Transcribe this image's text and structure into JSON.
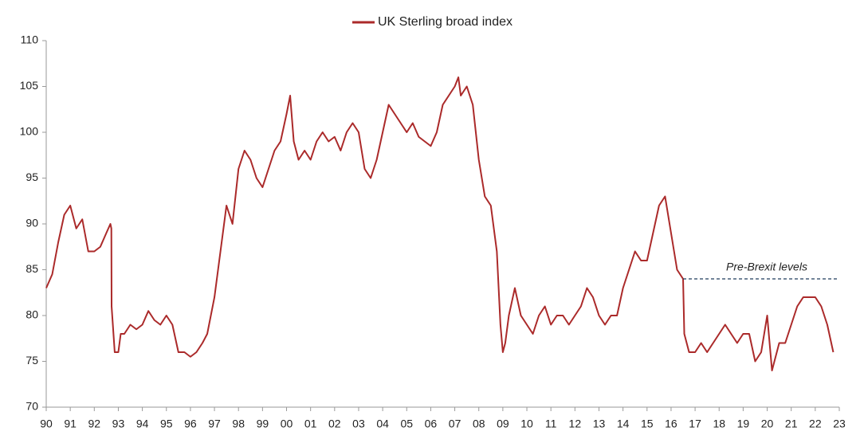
{
  "chart_data": {
    "type": "line",
    "series": [
      {
        "name": "UK Sterling broad index",
        "color": "#ab2a2a",
        "x": [
          1990.0,
          1990.25,
          1990.5,
          1990.75,
          1991.0,
          1991.25,
          1991.5,
          1991.75,
          1992.0,
          1992.25,
          1992.5,
          1992.67,
          1992.71,
          1992.72,
          1992.85,
          1993.0,
          1993.1,
          1993.25,
          1993.5,
          1993.75,
          1994.0,
          1994.25,
          1994.5,
          1994.75,
          1995.0,
          1995.25,
          1995.5,
          1995.75,
          1996.0,
          1996.25,
          1996.5,
          1996.7,
          1997.0,
          1997.25,
          1997.5,
          1997.75,
          1998.0,
          1998.25,
          1998.5,
          1998.75,
          1999.0,
          1999.25,
          1999.5,
          1999.75,
          2000.0,
          2000.15,
          2000.3,
          2000.5,
          2000.75,
          2001.0,
          2001.25,
          2001.5,
          2001.75,
          2002.0,
          2002.25,
          2002.5,
          2002.75,
          2003.0,
          2003.25,
          2003.5,
          2003.75,
          2004.0,
          2004.25,
          2004.5,
          2004.75,
          2005.0,
          2005.25,
          2005.5,
          2005.75,
          2006.0,
          2006.25,
          2006.5,
          2006.75,
          2007.0,
          2007.15,
          2007.25,
          2007.5,
          2007.75,
          2008.0,
          2008.25,
          2008.5,
          2008.75,
          2008.9,
          2009.0,
          2009.1,
          2009.25,
          2009.5,
          2009.75,
          2010.0,
          2010.25,
          2010.5,
          2010.75,
          2011.0,
          2011.25,
          2011.5,
          2011.75,
          2012.0,
          2012.25,
          2012.5,
          2012.75,
          2013.0,
          2013.25,
          2013.5,
          2013.75,
          2014.0,
          2014.25,
          2014.5,
          2014.75,
          2015.0,
          2015.25,
          2015.5,
          2015.75,
          2016.0,
          2016.25,
          2016.5,
          2016.55,
          2016.75,
          2017.0,
          2017.25,
          2017.5,
          2017.75,
          2018.0,
          2018.25,
          2018.5,
          2018.75,
          2019.0,
          2019.25,
          2019.5,
          2019.75,
          2020.0,
          2020.2,
          2020.5,
          2020.75,
          2021.0,
          2021.25,
          2021.5,
          2021.75,
          2022.0,
          2022.25,
          2022.5,
          2022.75
        ],
        "values": [
          83,
          84.5,
          88,
          91,
          92,
          89.5,
          90.5,
          87,
          87,
          87.5,
          89,
          90,
          89.5,
          81,
          76,
          76,
          78,
          78,
          79,
          78.5,
          79,
          80.5,
          79.5,
          79,
          80,
          79,
          76,
          76,
          75.5,
          76,
          77,
          78,
          82,
          87,
          92,
          90,
          96,
          98,
          97,
          95,
          94,
          96,
          98,
          99,
          102,
          104,
          99,
          97,
          98,
          97,
          99,
          100,
          99,
          99.5,
          98,
          100,
          101,
          100,
          96,
          95,
          97,
          100,
          103,
          102,
          101,
          100,
          101,
          99.5,
          99,
          98.5,
          100,
          103,
          104,
          105,
          106,
          104,
          105,
          103,
          97,
          93,
          92,
          87,
          79,
          76,
          77,
          80,
          83,
          80,
          79,
          78,
          80,
          81,
          79,
          80,
          80,
          79,
          80,
          81,
          83,
          82,
          80,
          79,
          80,
          80,
          83,
          85,
          87,
          86,
          86,
          89,
          92,
          93,
          89,
          85,
          84,
          78,
          76,
          76,
          77,
          76,
          77,
          78,
          79,
          78,
          77,
          78,
          78,
          75,
          76,
          80,
          74,
          77,
          77,
          79,
          81,
          82,
          82,
          82,
          81,
          79,
          76
        ]
      }
    ],
    "xlim": [
      1990,
      2023
    ],
    "xticks": [
      {
        "value": 1990,
        "label": "90"
      },
      {
        "value": 1991,
        "label": "91"
      },
      {
        "value": 1992,
        "label": "92"
      },
      {
        "value": 1993,
        "label": "93"
      },
      {
        "value": 1994,
        "label": "94"
      },
      {
        "value": 1995,
        "label": "95"
      },
      {
        "value": 1996,
        "label": "96"
      },
      {
        "value": 1997,
        "label": "97"
      },
      {
        "value": 1998,
        "label": "98"
      },
      {
        "value": 1999,
        "label": "99"
      },
      {
        "value": 2000,
        "label": "00"
      },
      {
        "value": 2001,
        "label": "01"
      },
      {
        "value": 2002,
        "label": "02"
      },
      {
        "value": 2003,
        "label": "03"
      },
      {
        "value": 2004,
        "label": "04"
      },
      {
        "value": 2005,
        "label": "05"
      },
      {
        "value": 2006,
        "label": "06"
      },
      {
        "value": 2007,
        "label": "07"
      },
      {
        "value": 2008,
        "label": "08"
      },
      {
        "value": 2009,
        "label": "09"
      },
      {
        "value": 2010,
        "label": "10"
      },
      {
        "value": 2011,
        "label": "11"
      },
      {
        "value": 2012,
        "label": "12"
      },
      {
        "value": 2013,
        "label": "13"
      },
      {
        "value": 2014,
        "label": "14"
      },
      {
        "value": 2015,
        "label": "15"
      },
      {
        "value": 2016,
        "label": "16"
      },
      {
        "value": 2017,
        "label": "17"
      },
      {
        "value": 2018,
        "label": "18"
      },
      {
        "value": 2019,
        "label": "19"
      },
      {
        "value": 2020,
        "label": "20"
      },
      {
        "value": 2021,
        "label": "21"
      },
      {
        "value": 2022,
        "label": "22"
      },
      {
        "value": 2023,
        "label": "23"
      }
    ],
    "ylim": [
      70,
      110
    ],
    "yticks": [
      70,
      75,
      80,
      85,
      90,
      95,
      100,
      105,
      110
    ],
    "reference_line": {
      "label": "Pre-Brexit levels",
      "value": 84,
      "x_start": 2016.5,
      "color": "#1f3b5c"
    },
    "grid": false
  }
}
